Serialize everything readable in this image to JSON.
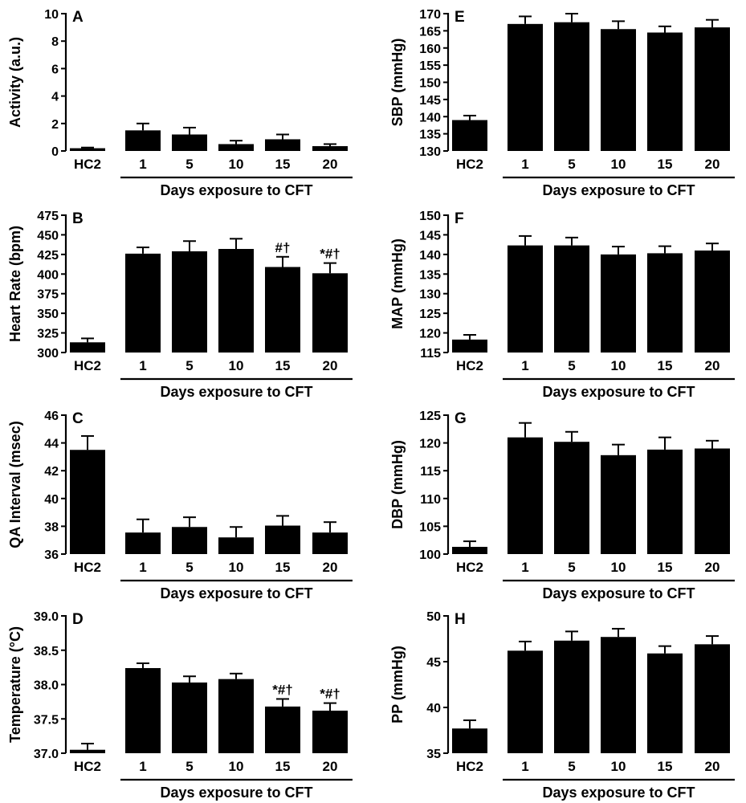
{
  "chart_data": [
    {
      "panel": "A",
      "type": "bar",
      "categories": [
        "HC2",
        "1",
        "5",
        "10",
        "15",
        "20"
      ],
      "values": [
        0.2,
        1.5,
        1.2,
        0.5,
        0.85,
        0.35
      ],
      "errors": [
        0.05,
        0.5,
        0.5,
        0.25,
        0.35,
        0.15
      ],
      "annotations": [
        "",
        "",
        "",
        "",
        "",
        ""
      ],
      "ylabel": "Activity (a.u.)",
      "xlabel": "Days exposure to CFT",
      "ylim": [
        0,
        10
      ],
      "yticks": [
        "0",
        "2",
        "4",
        "6",
        "8",
        "10"
      ]
    },
    {
      "panel": "B",
      "type": "bar",
      "categories": [
        "HC2",
        "1",
        "5",
        "10",
        "15",
        "20"
      ],
      "values": [
        313,
        426,
        429,
        432,
        409,
        401
      ],
      "errors": [
        5,
        8,
        13,
        13,
        13,
        13
      ],
      "annotations": [
        "",
        "",
        "",
        "",
        "#†",
        "*#†"
      ],
      "ylabel": "Heart Rate (bpm)",
      "xlabel": "Days exposure to CFT",
      "ylim": [
        300,
        475
      ],
      "yticks": [
        "300",
        "325",
        "350",
        "375",
        "400",
        "425",
        "450",
        "475"
      ]
    },
    {
      "panel": "C",
      "type": "bar",
      "categories": [
        "HC2",
        "1",
        "5",
        "10",
        "15",
        "20"
      ],
      "values": [
        43.5,
        37.55,
        37.95,
        37.2,
        38.05,
        37.55
      ],
      "errors": [
        1.0,
        0.95,
        0.7,
        0.75,
        0.7,
        0.75
      ],
      "annotations": [
        "",
        "",
        "",
        "",
        "",
        ""
      ],
      "ylabel": "QA Interval (msec)",
      "xlabel": "Days exposure to CFT",
      "ylim": [
        36,
        46
      ],
      "yticks": [
        "36",
        "38",
        "40",
        "42",
        "44",
        "46"
      ]
    },
    {
      "panel": "D",
      "type": "bar",
      "categories": [
        "HC2",
        "1",
        "5",
        "10",
        "15",
        "20"
      ],
      "values": [
        37.05,
        38.24,
        38.03,
        38.08,
        37.68,
        37.62
      ],
      "errors": [
        0.09,
        0.07,
        0.09,
        0.08,
        0.11,
        0.11
      ],
      "annotations": [
        "",
        "",
        "",
        "",
        "*#†",
        "*#†"
      ],
      "ylabel": "Temperature (°C)",
      "xlabel": "Days exposure to CFT",
      "ylim": [
        37.0,
        39.0
      ],
      "yticks": [
        "37.0",
        "37.5",
        "38.0",
        "38.5",
        "39.0"
      ]
    },
    {
      "panel": "E",
      "type": "bar",
      "categories": [
        "HC2",
        "1",
        "5",
        "10",
        "15",
        "20"
      ],
      "values": [
        139,
        167,
        167.5,
        165.5,
        164.5,
        166
      ],
      "errors": [
        1.3,
        2.2,
        2.5,
        2.3,
        1.8,
        2.2
      ],
      "annotations": [
        "",
        "",
        "",
        "",
        "",
        ""
      ],
      "ylabel": "SBP (mmHg)",
      "xlabel": "Days exposure to CFT",
      "ylim": [
        130,
        170
      ],
      "yticks": [
        "130",
        "135",
        "140",
        "145",
        "150",
        "155",
        "160",
        "165",
        "170"
      ]
    },
    {
      "panel": "F",
      "type": "bar",
      "categories": [
        "HC2",
        "1",
        "5",
        "10",
        "15",
        "20"
      ],
      "values": [
        118.3,
        142.3,
        142.3,
        140,
        140.3,
        141
      ],
      "errors": [
        1.2,
        2.4,
        2.0,
        2.0,
        1.8,
        1.8
      ],
      "annotations": [
        "",
        "",
        "",
        "",
        "",
        ""
      ],
      "ylabel": "MAP (mmHg)",
      "xlabel": "Days exposure to CFT",
      "ylim": [
        115,
        150
      ],
      "yticks": [
        "115",
        "120",
        "125",
        "130",
        "135",
        "140",
        "145",
        "150"
      ]
    },
    {
      "panel": "G",
      "type": "bar",
      "categories": [
        "HC2",
        "1",
        "5",
        "10",
        "15",
        "20"
      ],
      "values": [
        101.3,
        121,
        120.2,
        117.8,
        118.8,
        119
      ],
      "errors": [
        1.0,
        2.6,
        1.8,
        1.9,
        2.2,
        1.4
      ],
      "annotations": [
        "",
        "",
        "",
        "",
        "",
        ""
      ],
      "ylabel": "DBP (mmHg)",
      "xlabel": "Days exposure to CFT",
      "ylim": [
        100,
        125
      ],
      "yticks": [
        "100",
        "105",
        "110",
        "115",
        "120",
        "125"
      ]
    },
    {
      "panel": "H",
      "type": "bar",
      "categories": [
        "HC2",
        "1",
        "5",
        "10",
        "15",
        "20"
      ],
      "values": [
        37.7,
        46.2,
        47.3,
        47.7,
        45.9,
        46.9
      ],
      "errors": [
        0.9,
        1.0,
        1.0,
        0.9,
        0.8,
        0.9
      ],
      "annotations": [
        "",
        "",
        "",
        "",
        "",
        ""
      ],
      "ylabel": "PP (mmHg)",
      "xlabel": "Days exposure to CFT",
      "ylim": [
        35,
        50
      ],
      "yticks": [
        "35",
        "40",
        "45",
        "50"
      ]
    }
  ]
}
